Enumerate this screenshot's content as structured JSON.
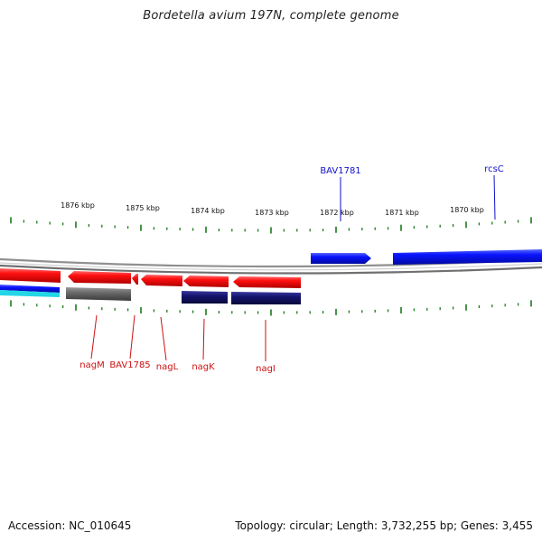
{
  "title": "Bordetella avium 197N, complete genome",
  "footer": {
    "accession": "Accession: NC_010645",
    "stats": "Topology: circular; Length: 3,732,255 bp; Genes: 3,455"
  },
  "kbp_labels": [
    "1876 kbp",
    "1875 kbp",
    "1874 kbp",
    "1873 kbp",
    "1872 kbp",
    "1871 kbp",
    "1870 kbp"
  ],
  "gene_labels": {
    "forward": [
      "BAV1781",
      "rcsC"
    ],
    "reverse": [
      "nagM",
      "BAV1785",
      "nagL",
      "nagK",
      "nagI"
    ]
  },
  "colors": {
    "forward_gene": "#0a14e6",
    "reverse_gene": "#e60a0a",
    "reverse_gene_dark": "#1a1a80",
    "pseudo_gene": "#6e6e6e",
    "tick": "#1a7a1a",
    "backbone": "#8c8c8c",
    "label_forward": "#1010cc",
    "label_reverse": "#cc1010",
    "cyan_track": "#22d6e6"
  }
}
